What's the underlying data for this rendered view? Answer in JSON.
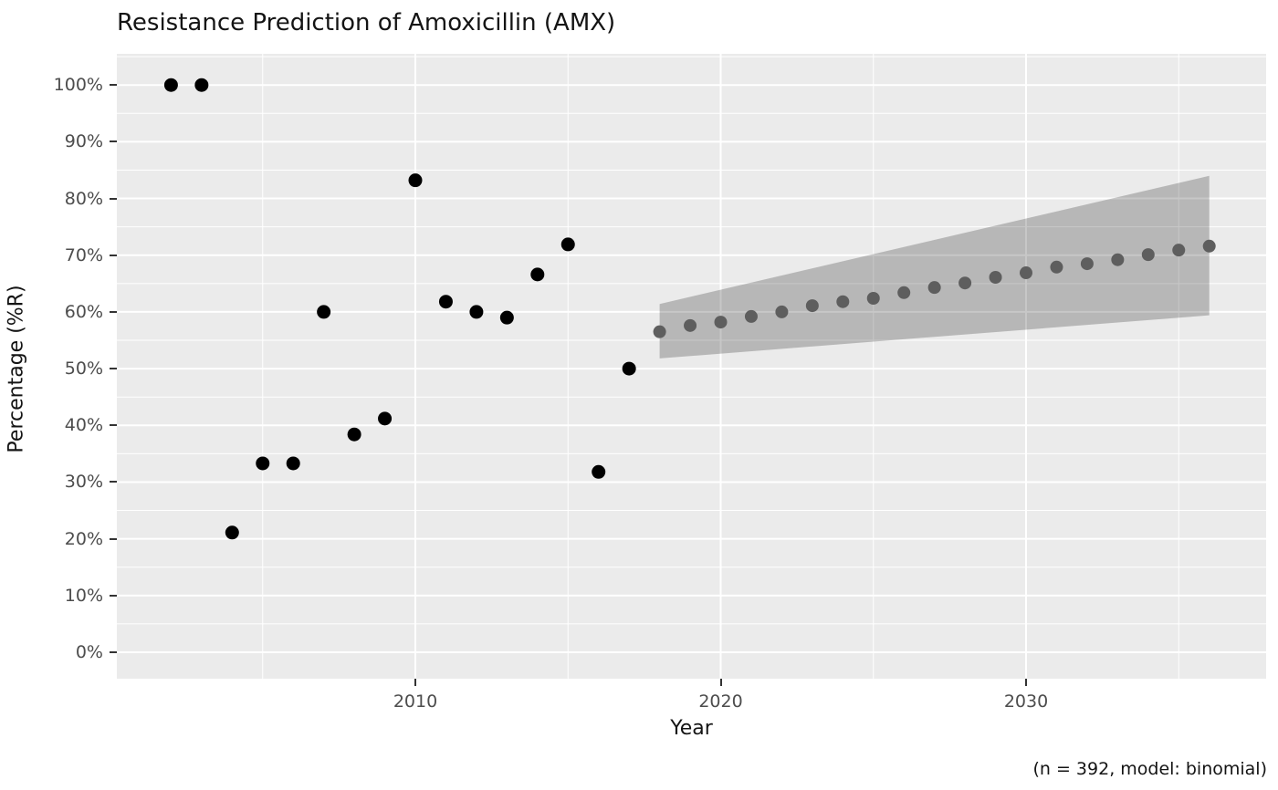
{
  "colors": {
    "plot_bg": "#ffffff",
    "panel_bg": "#ebebeb",
    "gridline": "#ffffff",
    "observed_point": "#000000",
    "predicted_point": "#5e5e5e",
    "ribbon": "rgba(0,0,0,0.22)",
    "tick_label": "#4d4d4d",
    "tick_mark": "#333333",
    "text": "#141414"
  },
  "chart_data": {
    "type": "scatter",
    "title": "Resistance Prediction of Amoxicillin (AMX)",
    "xlabel": "Year",
    "ylabel": "Percentage (%R)",
    "caption": "(n = 392, model: binomial)",
    "xlim": [
      2000.3,
      2037.7
    ],
    "ylim": [
      -4.7,
      105.5
    ],
    "grid": "major-and-minor-white-on-grey",
    "legend": "none",
    "x_ticks": [
      {
        "v": 2010,
        "label": "2010"
      },
      {
        "v": 2020,
        "label": "2020"
      },
      {
        "v": 2030,
        "label": "2030"
      }
    ],
    "x_minor": [
      2005,
      2015,
      2025,
      2035
    ],
    "y_ticks": [
      {
        "v": 0,
        "label": "0%"
      },
      {
        "v": 10,
        "label": "10%"
      },
      {
        "v": 20,
        "label": "20%"
      },
      {
        "v": 30,
        "label": "30%"
      },
      {
        "v": 40,
        "label": "40%"
      },
      {
        "v": 50,
        "label": "50%"
      },
      {
        "v": 60,
        "label": "60%"
      },
      {
        "v": 70,
        "label": "70%"
      },
      {
        "v": 80,
        "label": "80%"
      },
      {
        "v": 90,
        "label": "90%"
      },
      {
        "v": 100,
        "label": "100%"
      }
    ],
    "y_minor": [
      5,
      15,
      25,
      35,
      45,
      55,
      65,
      75,
      85,
      95,
      105
    ],
    "series": [
      {
        "name": "observed",
        "marker": "circle",
        "color": "#000000",
        "points": [
          [
            2002,
            100.0
          ],
          [
            2003,
            100.0
          ],
          [
            2004,
            21.1
          ],
          [
            2005,
            33.3
          ],
          [
            2006,
            33.3
          ],
          [
            2007,
            60.0
          ],
          [
            2008,
            38.4
          ],
          [
            2009,
            41.2
          ],
          [
            2010,
            83.2
          ],
          [
            2011,
            61.8
          ],
          [
            2012,
            60.0
          ],
          [
            2013,
            59.0
          ],
          [
            2014,
            66.6
          ],
          [
            2015,
            71.9
          ],
          [
            2016,
            31.8
          ],
          [
            2017,
            50.0
          ]
        ]
      },
      {
        "name": "predicted",
        "marker": "circle",
        "color": "#5e5e5e",
        "points": [
          [
            2018,
            56.5
          ],
          [
            2019,
            57.6
          ],
          [
            2020,
            58.2
          ],
          [
            2021,
            59.2
          ],
          [
            2022,
            60.0
          ],
          [
            2023,
            61.1
          ],
          [
            2024,
            61.8
          ],
          [
            2025,
            62.4
          ],
          [
            2026,
            63.4
          ],
          [
            2027,
            64.3
          ],
          [
            2028,
            65.1
          ],
          [
            2029,
            66.1
          ],
          [
            2030,
            66.9
          ],
          [
            2031,
            67.9
          ],
          [
            2032,
            68.5
          ],
          [
            2033,
            69.2
          ],
          [
            2034,
            70.1
          ],
          [
            2035,
            70.9
          ],
          [
            2036,
            71.6
          ]
        ]
      }
    ],
    "ribbon": {
      "name": "confidence-interval",
      "color": "rgba(0,0,0,0.22)",
      "points": [
        {
          "x": 2018,
          "lo": 51.8,
          "hi": 61.4
        },
        {
          "x": 2036,
          "lo": 59.4,
          "hi": 84.0
        }
      ]
    }
  }
}
